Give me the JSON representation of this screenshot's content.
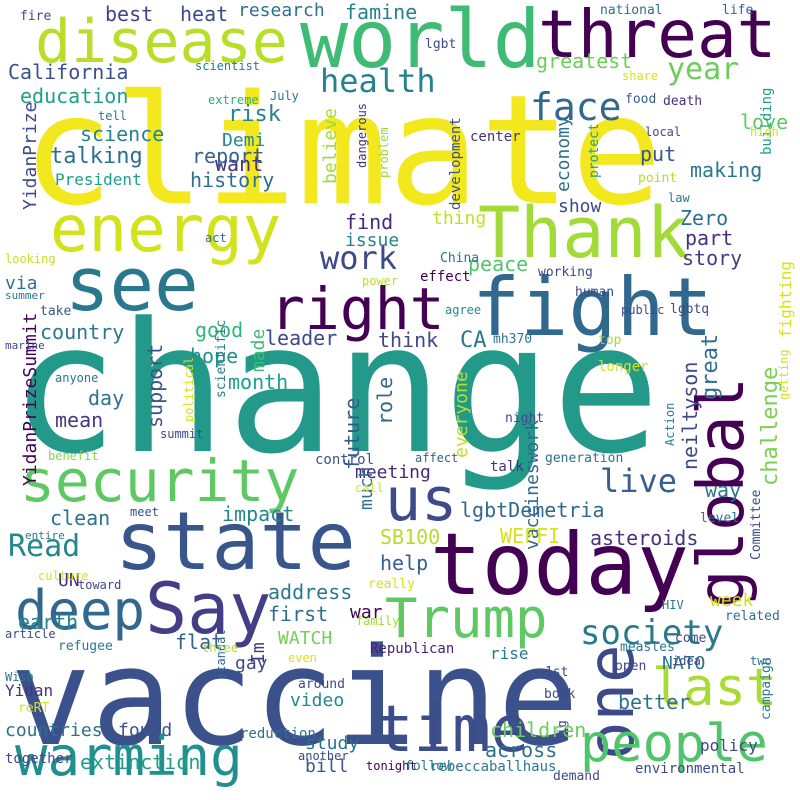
{
  "words": [
    {
      "text": "climate",
      "color": "#f3e71d"
    },
    {
      "text": "change",
      "color": "#239a89"
    },
    {
      "text": "vaccine",
      "color": "#3b518b"
    },
    {
      "text": "world",
      "color": "#3fbb73"
    },
    {
      "text": "disease",
      "color": "#b8de29"
    },
    {
      "text": "threat",
      "color": "#440154"
    },
    {
      "text": "energy",
      "color": "#d2e21b"
    },
    {
      "text": "Thank",
      "color": "#a2da37"
    },
    {
      "text": "see",
      "color": "#2a788e"
    },
    {
      "text": "fight",
      "color": "#31688e"
    },
    {
      "text": "right",
      "color": "#440154"
    },
    {
      "text": "global",
      "color": "#440154"
    },
    {
      "text": "security",
      "color": "#5ec962"
    },
    {
      "text": "state",
      "color": "#39568c"
    },
    {
      "text": "today",
      "color": "#440154"
    },
    {
      "text": "us",
      "color": "#3e4a89"
    },
    {
      "text": "one",
      "color": "#3e4989"
    },
    {
      "text": "Say",
      "color": "#433e85"
    },
    {
      "text": "deep",
      "color": "#31688e"
    },
    {
      "text": "Trump",
      "color": "#5ec962"
    },
    {
      "text": "last",
      "color": "#a8db34"
    },
    {
      "text": "people",
      "color": "#50c46a"
    },
    {
      "text": "time",
      "color": "#3d4d8a"
    },
    {
      "text": "warming",
      "color": "#218f8d"
    },
    {
      "text": "society",
      "color": "#2a788e"
    },
    {
      "text": "health",
      "color": "#26828e"
    },
    {
      "text": "face",
      "color": "#31688e"
    },
    {
      "text": "year",
      "color": "#6ccd5a"
    },
    {
      "text": "work",
      "color": "#3e4989"
    },
    {
      "text": "live",
      "color": "#355f8d"
    },
    {
      "text": "Read",
      "color": "#24878e"
    },
    {
      "text": "California",
      "color": "#3b518b"
    },
    {
      "text": "education",
      "color": "#1f9e89"
    },
    {
      "text": "research",
      "color": "#2d718e"
    },
    {
      "text": "famine",
      "color": "#26828e"
    },
    {
      "text": "heat",
      "color": "#3e4989"
    },
    {
      "text": "best",
      "color": "#414487"
    },
    {
      "text": "greatest",
      "color": "#6ccd5a"
    },
    {
      "text": "risk",
      "color": "#26828e"
    },
    {
      "text": "Demi",
      "color": "#24878e"
    },
    {
      "text": "love",
      "color": "#5ec962"
    },
    {
      "text": "want",
      "color": "#46327e"
    },
    {
      "text": "science",
      "color": "#26828e"
    },
    {
      "text": "talking",
      "color": "#2d708e"
    },
    {
      "text": "report",
      "color": "#355f8d"
    },
    {
      "text": "history",
      "color": "#2d718e"
    },
    {
      "text": "economy",
      "color": "#2d708e"
    },
    {
      "text": "making",
      "color": "#29788e"
    },
    {
      "text": "put",
      "color": "#39568c"
    },
    {
      "text": "believe",
      "color": "#a0da39"
    },
    {
      "text": "YidanPrize",
      "color": "#3e4989"
    },
    {
      "text": "YidanPrizeSummit",
      "color": "#440154"
    },
    {
      "text": "President",
      "color": "#1f9e89"
    },
    {
      "text": "building",
      "color": "#1fa188"
    },
    {
      "text": "Committee",
      "color": "#3e4989"
    },
    {
      "text": "find",
      "color": "#482979"
    },
    {
      "text": "issue",
      "color": "#26828e"
    },
    {
      "text": "part",
      "color": "#46327e"
    },
    {
      "text": "Zero",
      "color": "#2d708e"
    },
    {
      "text": "thing",
      "color": "#c2df23"
    },
    {
      "text": "show",
      "color": "#3e4989"
    },
    {
      "text": "story",
      "color": "#433e85"
    },
    {
      "text": "peace",
      "color": "#50c46a"
    },
    {
      "text": "via",
      "color": "#2c728e"
    },
    {
      "text": "country",
      "color": "#2a788e"
    },
    {
      "text": "good",
      "color": "#31b57b"
    },
    {
      "text": "hope",
      "color": "#20928c"
    },
    {
      "text": "made",
      "color": "#3dbc74"
    },
    {
      "text": "leader",
      "color": "#3e4989"
    },
    {
      "text": "think",
      "color": "#3e4989"
    },
    {
      "text": "CA",
      "color": "#2a788e"
    },
    {
      "text": "month",
      "color": "#1f9e89"
    },
    {
      "text": "day",
      "color": "#2c728e"
    },
    {
      "text": "mean",
      "color": "#453781"
    },
    {
      "text": "support",
      "color": "#39568c"
    },
    {
      "text": "future",
      "color": "#38588c"
    },
    {
      "text": "role",
      "color": "#31688e"
    },
    {
      "text": "great",
      "color": "#2d708e"
    },
    {
      "text": "neiltyson",
      "color": "#3e4989"
    },
    {
      "text": "challenge",
      "color": "#7ad151"
    },
    {
      "text": "fighting",
      "color": "#d8e219"
    },
    {
      "text": "vaccineswork",
      "color": "#31688e"
    },
    {
      "text": "everyone",
      "color": "#bddf26"
    },
    {
      "text": "meeting",
      "color": "#482878"
    },
    {
      "text": "much",
      "color": "#2d708e"
    },
    {
      "text": "control",
      "color": "#3b528b"
    },
    {
      "text": "clean",
      "color": "#2c728e"
    },
    {
      "text": "impact",
      "color": "#23888e"
    },
    {
      "text": "lgbtDemetria",
      "color": "#31688e"
    },
    {
      "text": "way",
      "color": "#2a788e"
    },
    {
      "text": "SB100",
      "color": "#b5de2b"
    },
    {
      "text": "WEFFI",
      "color": "#d8e219"
    },
    {
      "text": "asteroids",
      "color": "#46327e"
    },
    {
      "text": "help",
      "color": "#355f8d"
    },
    {
      "text": "UN",
      "color": "#46327e"
    },
    {
      "text": "address",
      "color": "#2a788e"
    },
    {
      "text": "first",
      "color": "#2d708e"
    },
    {
      "text": "war",
      "color": "#440154"
    },
    {
      "text": "week",
      "color": "#d0e11c"
    },
    {
      "text": "earth",
      "color": "#25858e"
    },
    {
      "text": "flat",
      "color": "#355f8d"
    },
    {
      "text": "WATCH",
      "color": "#75d054"
    },
    {
      "text": "Im",
      "color": "#453781"
    },
    {
      "text": "NATO",
      "color": "#2c728e"
    },
    {
      "text": "gay",
      "color": "#3e4989"
    },
    {
      "text": "video",
      "color": "#23888e"
    },
    {
      "text": "Yidan",
      "color": "#46327e"
    },
    {
      "text": "Republican",
      "color": "#482173"
    },
    {
      "text": "rise",
      "color": "#29798e"
    },
    {
      "text": "countries",
      "color": "#2d718e"
    },
    {
      "text": "found",
      "color": "#3b518b"
    },
    {
      "text": "children",
      "color": "#6ccd5a"
    },
    {
      "text": "better",
      "color": "#2d708e"
    },
    {
      "text": "across",
      "color": "#2d718e"
    },
    {
      "text": "study",
      "color": "#2c728e"
    },
    {
      "text": "bill",
      "color": "#38588c"
    },
    {
      "text": "extinction",
      "color": "#1f9e89"
    },
    {
      "text": "policy",
      "color": "#3e4989"
    },
    {
      "text": "fire",
      "color": "#3e4989"
    },
    {
      "text": "lgbt",
      "color": "#3e4a89"
    },
    {
      "text": "scientist",
      "color": "#287c8e"
    },
    {
      "text": "July",
      "color": "#2a788e"
    },
    {
      "text": "extreme",
      "color": "#29af7f"
    },
    {
      "text": "tell",
      "color": "#2a788e"
    },
    {
      "text": "dangerous",
      "color": "#472f7d"
    },
    {
      "text": "problem",
      "color": "#98d83e"
    },
    {
      "text": "development",
      "color": "#3b518b"
    },
    {
      "text": "center",
      "color": "#46327e"
    },
    {
      "text": "protect",
      "color": "#1f9e89"
    },
    {
      "text": "point",
      "color": "#b5de2b"
    },
    {
      "text": "law",
      "color": "#2a788e"
    },
    {
      "text": "local",
      "color": "#3e4989"
    },
    {
      "text": "high",
      "color": "#d8e219"
    },
    {
      "text": "national",
      "color": "#2d708e"
    },
    {
      "text": "life",
      "color": "#355f8d"
    },
    {
      "text": "share",
      "color": "#d8e219"
    },
    {
      "text": "food",
      "color": "#355f8d"
    },
    {
      "text": "death",
      "color": "#46327e"
    },
    {
      "text": "act",
      "color": "#2d708e"
    },
    {
      "text": "looking",
      "color": "#c8e020"
    },
    {
      "text": "summer",
      "color": "#2a788e"
    },
    {
      "text": "power",
      "color": "#b8de29"
    },
    {
      "text": "effect",
      "color": "#440154"
    },
    {
      "text": "China",
      "color": "#2c728e"
    },
    {
      "text": "working",
      "color": "#3e4989"
    },
    {
      "text": "human",
      "color": "#3e4989"
    },
    {
      "text": "top",
      "color": "#a2da37"
    },
    {
      "text": "public",
      "color": "#3e4989"
    },
    {
      "text": "lgbtq",
      "color": "#3e4989"
    },
    {
      "text": "take",
      "color": "#39568c"
    },
    {
      "text": "agree",
      "color": "#23888e"
    },
    {
      "text": "mh370",
      "color": "#2a788e"
    },
    {
      "text": "marine",
      "color": "#3e4989"
    },
    {
      "text": "anyone",
      "color": "#2a788e"
    },
    {
      "text": "scientific",
      "color": "#287c8e"
    },
    {
      "text": "political",
      "color": "#d8e219"
    },
    {
      "text": "scandal",
      "color": "#31688e"
    },
    {
      "text": "benefit",
      "color": "#86d549"
    },
    {
      "text": "summit",
      "color": "#3e4989"
    },
    {
      "text": "affect",
      "color": "#355f8d"
    },
    {
      "text": "generation",
      "color": "#2d708e"
    },
    {
      "text": "night",
      "color": "#3e4989"
    },
    {
      "text": "talk",
      "color": "#46327e"
    },
    {
      "text": "Action",
      "color": "#2a788e"
    },
    {
      "text": "call",
      "color": "#d8e219"
    },
    {
      "text": "meet",
      "color": "#3b518b"
    },
    {
      "text": "level",
      "color": "#2a788e"
    },
    {
      "text": "longer",
      "color": "#d8e219"
    },
    {
      "text": "entire",
      "color": "#2a788e"
    },
    {
      "text": "culture",
      "color": "#d8e219"
    },
    {
      "text": "toward",
      "color": "#3e4989"
    },
    {
      "text": "really",
      "color": "#d8e219"
    },
    {
      "text": "family",
      "color": "#a2da37"
    },
    {
      "text": "measles",
      "color": "#2a788e"
    },
    {
      "text": "related",
      "color": "#2d708e"
    },
    {
      "text": "come",
      "color": "#3e4989"
    },
    {
      "text": "HIV",
      "color": "#2a788e"
    },
    {
      "text": "idea",
      "color": "#3e4989"
    },
    {
      "text": "open",
      "color": "#3e4989"
    },
    {
      "text": "two",
      "color": "#2a788e"
    },
    {
      "text": "article",
      "color": "#3e4989"
    },
    {
      "text": "refugee",
      "color": "#2a788e"
    },
    {
      "text": "three",
      "color": "#b8de29"
    },
    {
      "text": "even",
      "color": "#d8e219"
    },
    {
      "text": "around",
      "color": "#3e4989"
    },
    {
      "text": "1st",
      "color": "#3e4989"
    },
    {
      "text": "book",
      "color": "#3e4989"
    },
    {
      "text": "Wish",
      "color": "#2a788e"
    },
    {
      "text": "reRT",
      "color": "#d8e219"
    },
    {
      "text": "reduction",
      "color": "#2d708e"
    },
    {
      "text": "another",
      "color": "#3e4989"
    },
    {
      "text": "tonight",
      "color": "#440154"
    },
    {
      "text": "together",
      "color": "#3e4989"
    },
    {
      "text": "follow",
      "color": "#2a788e"
    },
    {
      "text": "rebeccaballhaus",
      "color": "#2a788e"
    },
    {
      "text": "demand",
      "color": "#3e4989"
    },
    {
      "text": "environmental",
      "color": "#3e4989"
    },
    {
      "text": "big",
      "color": "#3e4989"
    },
    {
      "text": "campaign",
      "color": "#2a788e"
    },
    {
      "text": "getting",
      "color": "#d8e219"
    }
  ]
}
